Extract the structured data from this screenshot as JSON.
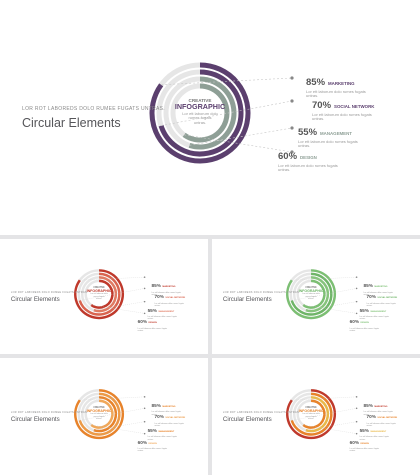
{
  "slide": {
    "subtitle": "LOR ROT LABOREDS DOLO RUMEE FUGATS UNTRAS.",
    "title": "Circular Elements",
    "center_top": "CREATIVE",
    "center_main": "INFOGRAPHIC",
    "center_desc_1": "Lor ett laborum dolo",
    "center_desc_2": "rumes fugats",
    "center_desc_3": "untras.",
    "stats": [
      {
        "value": 85,
        "label_pct": "85%",
        "label": "MARKETING",
        "desc_1": "Lor ett laborum dolo rumes fugats",
        "desc_2": "untras."
      },
      {
        "value": 70,
        "label_pct": "70%",
        "label": "SOCIAL NETWORK",
        "desc_1": "Lor ett laborum dolo rumes fugats",
        "desc_2": "untras."
      },
      {
        "value": 55,
        "label_pct": "55%",
        "label": "MANAGEMENT",
        "desc_1": "Lor ett laborum dolo rumes fugats",
        "desc_2": "untras."
      },
      {
        "value": 60,
        "label_pct": "60%",
        "label": "DESIGN",
        "desc_1": "Lor ett laborum dolo rumes fugats",
        "desc_2": "untras."
      }
    ]
  },
  "variants": [
    {
      "name": "purple",
      "colors": [
        "#5b3f6e",
        "#5b3f6e",
        "#8e9f96",
        "#8e9f96"
      ],
      "accent": "#5b3f6e"
    },
    {
      "name": "red",
      "colors": [
        "#c0392b",
        "#d9644f",
        "#e07a62",
        "#c0392b"
      ],
      "accent": "#c0392b"
    },
    {
      "name": "green",
      "colors": [
        "#7cbf73",
        "#6fb568",
        "#86c47c",
        "#7cbf73"
      ],
      "accent": "#6fb568"
    },
    {
      "name": "orange",
      "colors": [
        "#e8832a",
        "#ec9a47",
        "#e8832a",
        "#f0a85a"
      ],
      "accent": "#e8832a"
    },
    {
      "name": "multicolor",
      "colors": [
        "#c0392b",
        "#e8832a",
        "#e9b949",
        "#e8832a"
      ],
      "accent": "#e8832a"
    }
  ]
}
